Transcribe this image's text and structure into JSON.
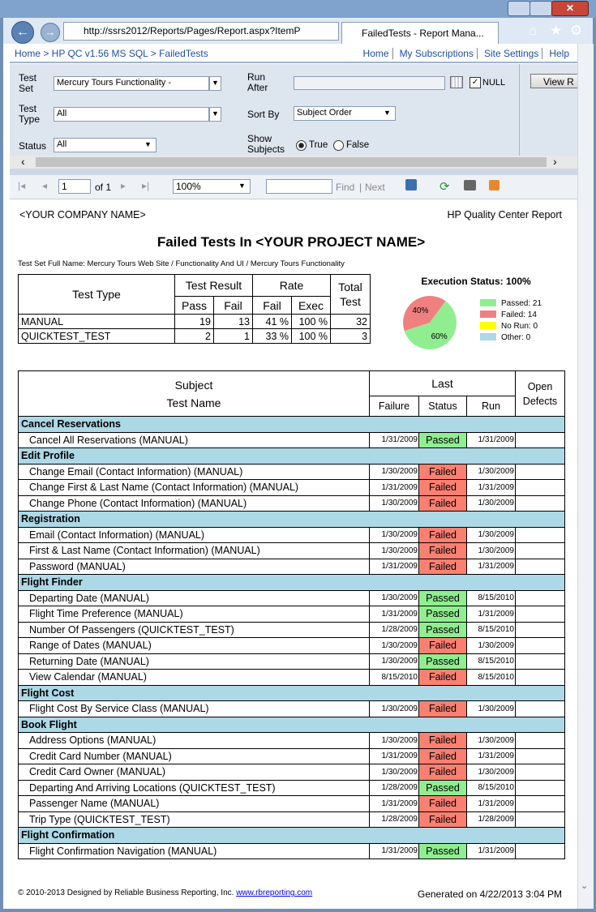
{
  "browser": {
    "url": "http://ssrs2012/Reports/Pages/Report.aspx?ItemP",
    "tab": "FailedTests - Report Mana..."
  },
  "nav": {
    "breadcrumb": "Home > HP QC v1.56 MS SQL > FailedTests",
    "links": [
      "Home",
      "My Subscriptions",
      "Site Settings",
      "Help"
    ]
  },
  "parameters": {
    "test_set_label": "Test Set",
    "test_set": "Mercury Tours Functionality   -",
    "test_type_label": "Test Type",
    "test_type": "All",
    "status_label": "Status",
    "status": "All",
    "run_after_label": "Run After",
    "null_label": "NULL",
    "sort_by_label": "Sort By",
    "sort_by": "Subject Order",
    "show_subjects_label": "Show Subjects",
    "true_label": "True",
    "false_label": "False",
    "view_button": "View R"
  },
  "toolbar": {
    "page": "1",
    "of": "of 1",
    "zoom": "100%",
    "find": "Find",
    "next": "Next"
  },
  "report": {
    "company": "<YOUR COMPANY NAME>",
    "header_right": "HP Quality Center Report",
    "title": "Failed Tests In <YOUR PROJECT NAME>",
    "full_name": "Test Set Full Name: Mercury Tours Web Site / Functionality And UI / Mercury Tours Functionality",
    "summary": {
      "headers": {
        "test_type": "Test Type",
        "test_result": "Test Result",
        "pass": "Pass",
        "fail": "Fail",
        "rate": "Rate",
        "rate_fail": "Fail",
        "exec": "Exec",
        "total": "Total Test"
      },
      "rows": [
        [
          "MANUAL",
          19,
          13,
          "41 %",
          "100 %",
          32
        ],
        [
          "QUICKTEST_TEST",
          2,
          1,
          "33 %",
          "100 %",
          3
        ]
      ]
    },
    "pie": {
      "title": "Execution Status: 100%",
      "slices": [
        {
          "value": 60,
          "label": "60%",
          "color": "#90ee90"
        },
        {
          "value": 40,
          "label": "40%",
          "color": "#f08080"
        }
      ],
      "legend": [
        {
          "text": "Passed: 21",
          "color": "#90ee90"
        },
        {
          "text": "Failed: 14",
          "color": "#f08080"
        },
        {
          "text": "No Run: 0",
          "color": "#ffff00"
        },
        {
          "text": "Other: 0",
          "color": "#add8e6"
        }
      ]
    },
    "detail": {
      "headers": {
        "subject": "Subject",
        "test_name": "Test Name",
        "last": "Last",
        "failure": "Failure",
        "status": "Status",
        "run": "Run",
        "open_defects": "Open Defects"
      },
      "status_colors": {
        "Passed": "#90ee90",
        "Failed": "#fa8072"
      },
      "groups": [
        {
          "name": "Cancel Reservations",
          "tests": [
            {
              "name": "Cancel All Reservations (MANUAL)",
              "failure": "1/31/2009",
              "status": "Passed",
              "run": "1/31/2009"
            }
          ]
        },
        {
          "name": "Edit Profile",
          "tests": [
            {
              "name": "Change Email (Contact Information) (MANUAL)",
              "failure": "1/30/2009",
              "status": "Failed",
              "run": "1/30/2009"
            },
            {
              "name": "Change First & Last Name (Contact Information) (MANUAL)",
              "failure": "1/31/2009",
              "status": "Failed",
              "run": "1/31/2009"
            },
            {
              "name": "Change Phone (Contact Information) (MANUAL)",
              "failure": "1/30/2009",
              "status": "Failed",
              "run": "1/30/2009"
            }
          ]
        },
        {
          "name": "Registration",
          "tests": [
            {
              "name": "Email (Contact Information) (MANUAL)",
              "failure": "1/30/2009",
              "status": "Failed",
              "run": "1/30/2009"
            },
            {
              "name": "First & Last Name (Contact Information) (MANUAL)",
              "failure": "1/30/2009",
              "status": "Failed",
              "run": "1/30/2009"
            },
            {
              "name": "Password (MANUAL)",
              "failure": "1/31/2009",
              "status": "Failed",
              "run": "1/31/2009"
            }
          ]
        },
        {
          "name": "Flight Finder",
          "tests": [
            {
              "name": "Departing Date (MANUAL)",
              "failure": "1/30/2009",
              "status": "Passed",
              "run": "8/15/2010"
            },
            {
              "name": "Flight Time Preference (MANUAL)",
              "failure": "1/31/2009",
              "status": "Passed",
              "run": "1/31/2009"
            },
            {
              "name": "Number Of Passengers (QUICKTEST_TEST)",
              "failure": "1/28/2009",
              "status": "Passed",
              "run": "8/15/2010"
            },
            {
              "name": "Range of Dates (MANUAL)",
              "failure": "1/30/2009",
              "status": "Failed",
              "run": "1/30/2009"
            },
            {
              "name": "Returning Date (MANUAL)",
              "failure": "1/30/2009",
              "status": "Passed",
              "run": "8/15/2010"
            },
            {
              "name": "View Calendar (MANUAL)",
              "failure": "8/15/2010",
              "status": "Failed",
              "run": "8/15/2010"
            }
          ]
        },
        {
          "name": "Flight Cost",
          "tests": [
            {
              "name": "Flight Cost By Service Class (MANUAL)",
              "failure": "1/30/2009",
              "status": "Failed",
              "run": "1/30/2009"
            }
          ]
        },
        {
          "name": "Book Flight",
          "tests": [
            {
              "name": "Address Options (MANUAL)",
              "failure": "1/30/2009",
              "status": "Failed",
              "run": "1/30/2009"
            },
            {
              "name": "Credit Card Number (MANUAL)",
              "failure": "1/31/2009",
              "status": "Failed",
              "run": "1/31/2009"
            },
            {
              "name": "Credit Card Owner (MANUAL)",
              "failure": "1/30/2009",
              "status": "Failed",
              "run": "1/30/2009"
            },
            {
              "name": "Departing And Arriving Locations (QUICKTEST_TEST)",
              "failure": "1/28/2009",
              "status": "Passed",
              "run": "8/15/2010"
            },
            {
              "name": "Passenger Name (MANUAL)",
              "failure": "1/31/2009",
              "status": "Failed",
              "run": "1/31/2009"
            },
            {
              "name": "Trip Type (QUICKTEST_TEST)",
              "failure": "1/28/2009",
              "status": "Failed",
              "run": "1/28/2009"
            }
          ]
        },
        {
          "name": "Flight Confirmation",
          "tests": [
            {
              "name": "Flight Confirmation Navigation (MANUAL)",
              "failure": "1/31/2009",
              "status": "Passed",
              "run": "1/31/2009"
            }
          ]
        }
      ]
    },
    "footer": {
      "copyright": "© 2010-2013 Designed by Reliable Business Reporting, Inc.",
      "link": "www.rbreporting.com",
      "generated": "Generated on 4/22/2013 3:04 PM"
    }
  }
}
